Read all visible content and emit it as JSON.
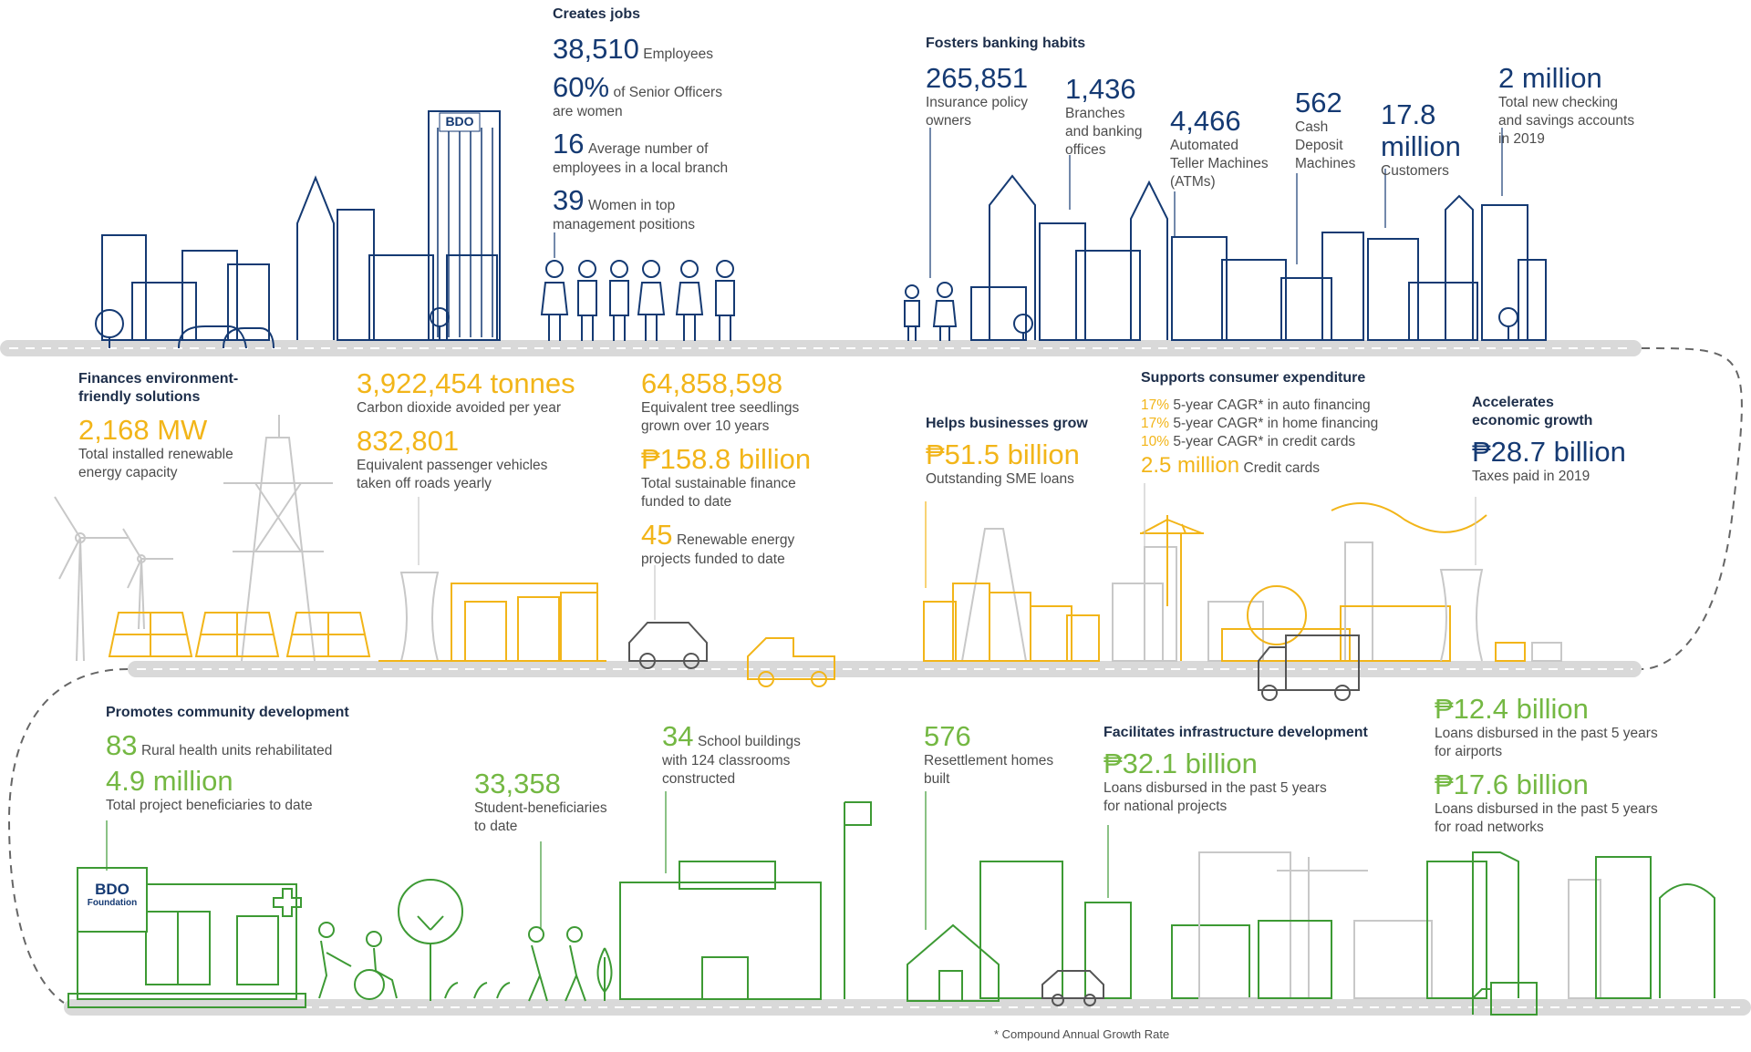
{
  "colors": {
    "navy": "#153a73",
    "gold": "#f2b519",
    "green": "#74b843",
    "road": "#d9d9d9",
    "line_gray": "#c8c8c8"
  },
  "icons": [
    "city-skyline-icon",
    "people-icon",
    "wind-turbine-icon",
    "power-tower-icon",
    "solar-panel-icon",
    "factory-icon",
    "car-icon",
    "crane-icon",
    "truck-icon",
    "school-icon",
    "clinic-icon",
    "house-icon",
    "tree-icon",
    "flag-icon",
    "wheelchair-icon"
  ],
  "jobs": {
    "title": "Creates jobs",
    "employees_value": "38,510",
    "employees_label": "Employees",
    "senior_value": "60%",
    "senior_label": "of Senior Officers",
    "senior_label2": "are women",
    "branch_value": "16",
    "branch_label": "Average number of",
    "branch_label2": "employees in a local branch",
    "women_value": "39",
    "women_label": "Women in top",
    "women_label2": "management positions"
  },
  "banking": {
    "title": "Fosters banking habits",
    "insurance_value": "265,851",
    "insurance_l1": "Insurance policy",
    "insurance_l2": "owners",
    "branches_value": "1,436",
    "branches_l1": "Branches",
    "branches_l2": "and banking",
    "branches_l3": "offices",
    "atm_value": "4,466",
    "atm_l1": "Automated",
    "atm_l2": "Teller Machines",
    "atm_l3": "(ATMs)",
    "cdm_value": "562",
    "cdm_l1": "Cash",
    "cdm_l2": "Deposit",
    "cdm_l3": "Machines",
    "cust_value": "17.8",
    "cust_value2": "million",
    "cust_label": "Customers",
    "accts_value": "2 million",
    "accts_l1": "Total new checking",
    "accts_l2": "and savings accounts",
    "accts_l3": "in 2019"
  },
  "environment": {
    "title_l1": "Finances environment-",
    "title_l2": "friendly solutions",
    "mw_value": "2,168 MW",
    "mw_l1": "Total installed renewable",
    "mw_l2": "energy capacity",
    "co2_value": "3,922,454 tonnes",
    "co2_label": "Carbon dioxide avoided per year",
    "veh_value": "832,801",
    "veh_l1": "Equivalent passenger vehicles",
    "veh_l2": "taken off roads yearly",
    "tree_value": "64,858,598",
    "tree_l1": "Equivalent tree seedlings",
    "tree_l2": "grown over 10 years",
    "fin_value": "₱158.8 billion",
    "fin_l1": "Total sustainable finance",
    "fin_l2": "funded to date",
    "proj_value": "45",
    "proj_l1": "Renewable energy",
    "proj_l2": "projects funded to date"
  },
  "business": {
    "title": "Helps businesses grow",
    "sme_value": "₱51.5 billion",
    "sme_label": "Outstanding SME loans"
  },
  "consumer": {
    "title": "Supports consumer expenditure",
    "auto_pct": "17%",
    "auto_label": "5-year CAGR* in auto financing",
    "home_pct": "17%",
    "home_label": "5-year CAGR* in home financing",
    "card_pct": "10%",
    "card_label": "5-year CAGR* in credit cards",
    "cards_value": "2.5 million",
    "cards_label": "Credit cards"
  },
  "economy": {
    "title_l1": "Accelerates",
    "title_l2": "economic growth",
    "tax_value": "₱28.7 billion",
    "tax_label": "Taxes paid in 2019"
  },
  "community": {
    "title": "Promotes community development",
    "rhu_value": "83",
    "rhu_label": "Rural health units rehabilitated",
    "ben_value": "4.9 million",
    "ben_label": "Total project beneficiaries to date",
    "stud_value": "33,358",
    "stud_l1": "Student-beneficiaries",
    "stud_l2": "to date",
    "school_value": "34",
    "school_l1": "School buildings",
    "school_l2": "with 124 classrooms",
    "school_l3": "constructed",
    "homes_value": "576",
    "homes_l1": "Resettlement homes",
    "homes_l2": "built"
  },
  "infrastructure": {
    "title": "Facilitates infrastructure development",
    "nat_value": "₱32.1 billion",
    "nat_l1": "Loans disbursed in the past 5 years",
    "nat_l2": "for national projects",
    "air_value": "₱12.4 billion",
    "air_l1": "Loans disbursed in the past 5 years",
    "air_l2": "for airports",
    "road_value": "₱17.6 billion",
    "road_l1": "Loans disbursed in the past 5 years",
    "road_l2": "for road networks"
  },
  "logos": {
    "bdo": "BDO",
    "bdo_foundation_l1": "BDO",
    "bdo_foundation_l2": "Foundation"
  },
  "footnote": "*  Compound Annual Growth Rate"
}
